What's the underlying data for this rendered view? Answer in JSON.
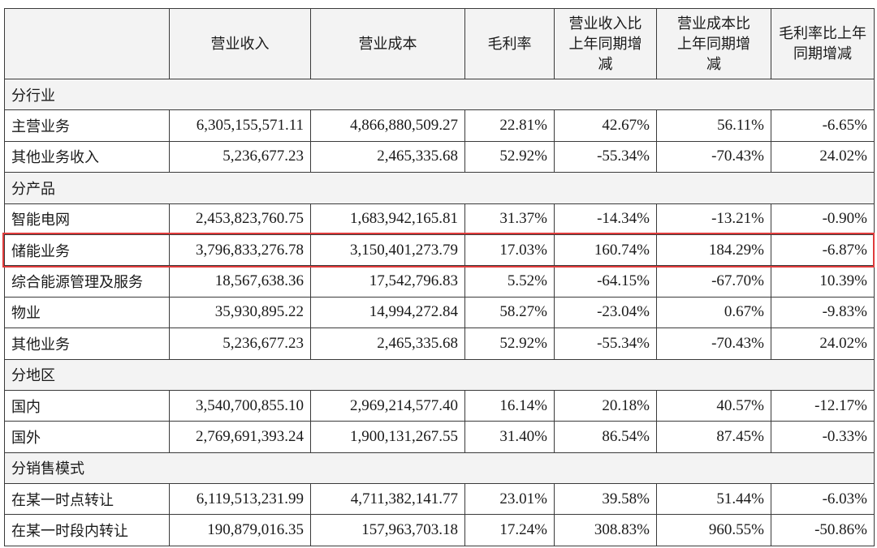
{
  "headers": [
    "",
    "营业收入",
    "营业成本",
    "毛利率",
    "营业收入比上年同期增减",
    "营业成本比上年同期增减",
    "毛利率比上年同期增减"
  ],
  "rows": [
    {
      "type": "section",
      "label": "分行业"
    },
    {
      "type": "data",
      "label": "主营业务",
      "values": [
        "6,305,155,571.11",
        "4,866,880,509.27",
        "22.81%",
        "42.67%",
        "56.11%",
        "-6.65%"
      ]
    },
    {
      "type": "data",
      "label": "其他业务收入",
      "values": [
        "5,236,677.23",
        "2,465,335.68",
        "52.92%",
        "-55.34%",
        "-70.43%",
        "24.02%"
      ]
    },
    {
      "type": "section",
      "label": "分产品"
    },
    {
      "type": "data",
      "label": "智能电网",
      "values": [
        "2,453,823,760.75",
        "1,683,942,165.81",
        "31.37%",
        "-14.34%",
        "-13.21%",
        "-0.90%"
      ]
    },
    {
      "type": "data",
      "label": "储能业务",
      "highlighted": true,
      "values": [
        "3,796,833,276.78",
        "3,150,401,273.79",
        "17.03%",
        "160.74%",
        "184.29%",
        "-6.87%"
      ]
    },
    {
      "type": "data",
      "label": "综合能源管理及服务",
      "values": [
        "18,567,638.36",
        "17,542,796.83",
        "5.52%",
        "-64.15%",
        "-67.70%",
        "10.39%"
      ]
    },
    {
      "type": "data",
      "label": "物业",
      "values": [
        "35,930,895.22",
        "14,994,272.84",
        "58.27%",
        "-23.04%",
        "0.67%",
        "-9.83%"
      ]
    },
    {
      "type": "data",
      "label": "其他业务",
      "values": [
        "5,236,677.23",
        "2,465,335.68",
        "52.92%",
        "-55.34%",
        "-70.43%",
        "24.02%"
      ]
    },
    {
      "type": "section",
      "label": "分地区"
    },
    {
      "type": "data",
      "label": "国内",
      "values": [
        "3,540,700,855.10",
        "2,969,214,577.40",
        "16.14%",
        "20.18%",
        "40.57%",
        "-12.17%"
      ]
    },
    {
      "type": "data",
      "label": "国外",
      "values": [
        "2,769,691,393.24",
        "1,900,131,267.55",
        "31.40%",
        "86.54%",
        "87.45%",
        "-0.33%"
      ]
    },
    {
      "type": "section",
      "label": "分销售模式"
    },
    {
      "type": "data",
      "label": "在某一时点转让",
      "values": [
        "6,119,513,231.99",
        "4,711,382,141.77",
        "23.01%",
        "39.58%",
        "51.44%",
        "-6.03%"
      ]
    },
    {
      "type": "data",
      "label": "在某一时段内转让",
      "values": [
        "190,879,016.35",
        "157,963,703.18",
        "17.24%",
        "308.83%",
        "960.55%",
        "-50.86%"
      ]
    }
  ],
  "colors": {
    "header_bg": "#f3f3f3",
    "section_bg": "#f3f3f3",
    "border": "#3a3a3a",
    "highlight": "#e03b3b"
  }
}
